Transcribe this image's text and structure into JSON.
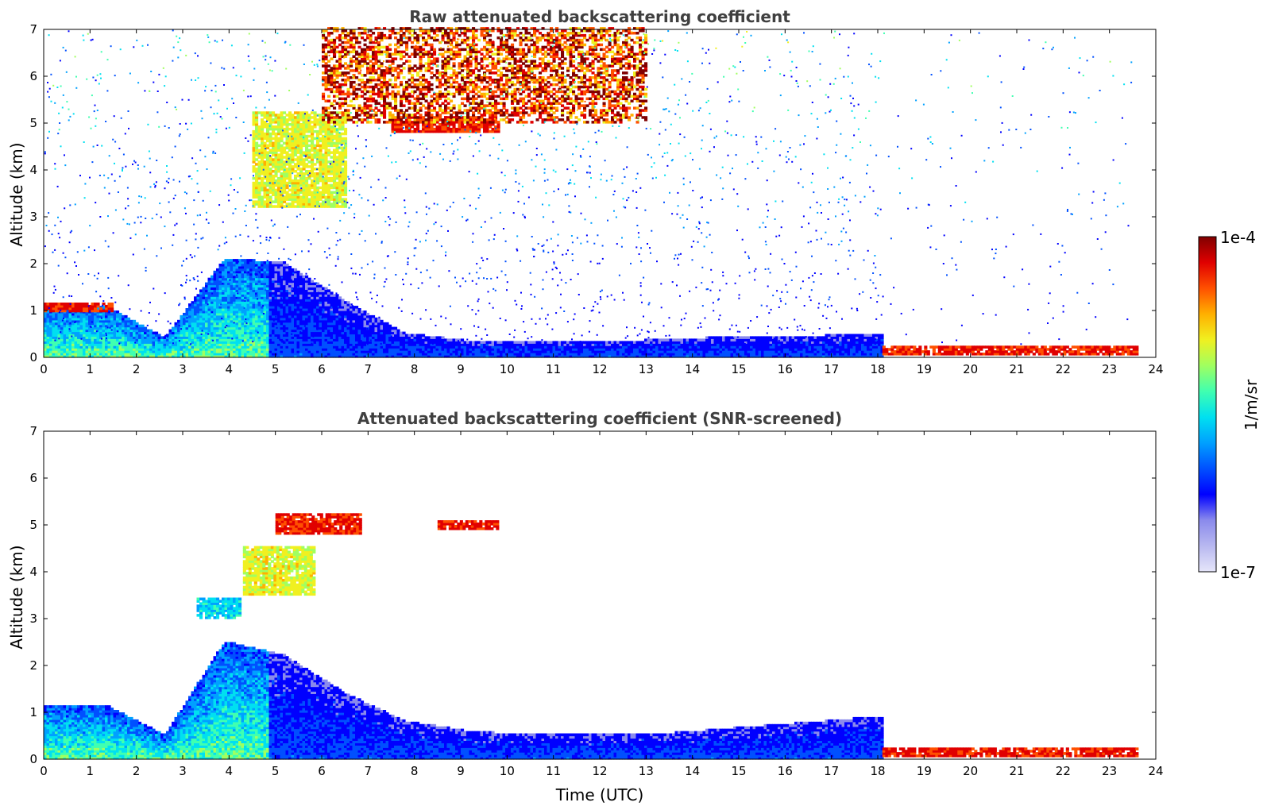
{
  "figure": {
    "colorbar": {
      "max_label": "1e-4",
      "min_label": "1e-7",
      "unit_label": "1/m/sr",
      "scale": "log",
      "colormap": "jet",
      "colors": [
        "#e6e6fa",
        "#b8b8f0",
        "#8a8aec",
        "#0000ff",
        "#0050ff",
        "#00a0ff",
        "#00e0f0",
        "#40ffb0",
        "#a0ff60",
        "#f0f020",
        "#ffb000",
        "#ff5000",
        "#e00000",
        "#800000"
      ]
    }
  },
  "chart_data": [
    {
      "type": "heatmap",
      "title": "Raw attenuated backscattering coefficient",
      "xlabel": "",
      "ylabel": "Altitude (km)",
      "xlim": [
        0,
        24
      ],
      "ylim": [
        0,
        7
      ],
      "x_ticks": [
        "0",
        "1",
        "2",
        "3",
        "4",
        "5",
        "6",
        "7",
        "8",
        "9",
        "10",
        "11",
        "12",
        "13",
        "14",
        "15",
        "16",
        "17",
        "18",
        "19",
        "20",
        "21",
        "22",
        "23",
        "24"
      ],
      "y_ticks": [
        "0",
        "1",
        "2",
        "3",
        "4",
        "5",
        "6",
        "7"
      ],
      "data_end_time": 23.6,
      "features": [
        {
          "kind": "boundary_layer",
          "time": [
            0,
            18.1
          ],
          "top_altitude_km": [
            1.1,
            1.1,
            0.4,
            2.1,
            2.0,
            1.2,
            0.5,
            0.35,
            0.3,
            0.35,
            0.35,
            0.4,
            0.4,
            0.45,
            0.5
          ],
          "level": "medium"
        },
        {
          "kind": "cloud_top_layer",
          "time": [
            0,
            1.5
          ],
          "altitude_km": 1.05,
          "level": "high"
        },
        {
          "kind": "elevated_layer",
          "time": [
            4.5,
            6.5
          ],
          "altitude_km": [
            3.2,
            5.2
          ],
          "level": "medium-high"
        },
        {
          "kind": "elevated_layer",
          "time": [
            7.5,
            9.8
          ],
          "altitude_km": [
            4.8,
            5.1
          ],
          "level": "high"
        },
        {
          "kind": "noise_high_altitude",
          "time": [
            6,
            13
          ],
          "altitude_km": [
            5,
            7
          ],
          "level": "high"
        },
        {
          "kind": "low_cloud",
          "time": [
            18.1,
            23.6
          ],
          "altitude_km": [
            0.05,
            0.25
          ],
          "level": "high"
        }
      ]
    },
    {
      "type": "heatmap",
      "title": "Attenuated backscattering coefficient (SNR-screened)",
      "xlabel": "Time (UTC)",
      "ylabel": "Altitude (km)",
      "xlim": [
        0,
        24
      ],
      "ylim": [
        0,
        7
      ],
      "x_ticks": [
        "0",
        "1",
        "2",
        "3",
        "4",
        "5",
        "6",
        "7",
        "8",
        "9",
        "10",
        "11",
        "12",
        "13",
        "14",
        "15",
        "16",
        "17",
        "18",
        "19",
        "20",
        "21",
        "22",
        "23",
        "24"
      ],
      "y_ticks": [
        "0",
        "1",
        "2",
        "3",
        "4",
        "5",
        "6",
        "7"
      ],
      "data_end_time": 23.6,
      "features": [
        {
          "kind": "boundary_layer",
          "time": [
            0,
            18.1
          ],
          "top_altitude_km": [
            1.15,
            1.15,
            0.5,
            2.5,
            2.2,
            1.4,
            0.8,
            0.6,
            0.5,
            0.5,
            0.5,
            0.6,
            0.7,
            0.8,
            0.9
          ],
          "level": "medium"
        },
        {
          "kind": "elevated_layer",
          "time": [
            3.3,
            4.2
          ],
          "altitude_km": [
            3.0,
            3.4
          ],
          "level": "medium"
        },
        {
          "kind": "elevated_layer",
          "time": [
            4.3,
            5.8
          ],
          "altitude_km": [
            3.5,
            4.5
          ],
          "level": "medium-high"
        },
        {
          "kind": "elevated_layer",
          "time": [
            5.0,
            6.8
          ],
          "altitude_km": [
            4.8,
            5.2
          ],
          "level": "high"
        },
        {
          "kind": "elevated_layer",
          "time": [
            8.5,
            9.8
          ],
          "altitude_km": [
            4.9,
            5.1
          ],
          "level": "high"
        },
        {
          "kind": "low_cloud",
          "time": [
            18.1,
            23.6
          ],
          "altitude_km": [
            0.05,
            0.25
          ],
          "level": "high"
        }
      ]
    }
  ]
}
